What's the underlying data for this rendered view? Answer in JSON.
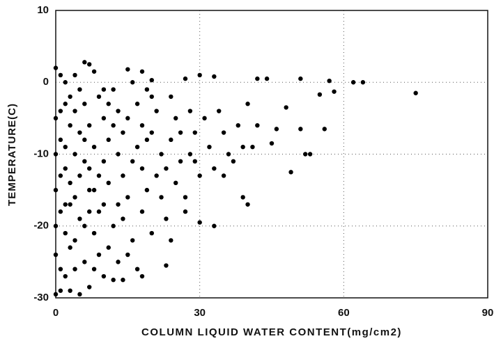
{
  "chart_data": {
    "type": "scatter",
    "xlabel": "COLUMN LIQUID WATER CONTENT(mg/cm2)",
    "ylabel": "TEMPERATURE(C)",
    "color": "#000000",
    "grid": true,
    "xlim": [
      0,
      90
    ],
    "xticks": [
      0,
      30,
      60,
      90
    ],
    "ylim": [
      -30,
      10
    ],
    "yticks": [
      -30,
      -20,
      -10,
      0,
      10
    ],
    "x": [
      75,
      64,
      62,
      58,
      57,
      55,
      56,
      51,
      51,
      53,
      52,
      49,
      48,
      46,
      45,
      44,
      42,
      42,
      41,
      40,
      39,
      37,
      35,
      33,
      30,
      27,
      23,
      24,
      18,
      17,
      14,
      12,
      10,
      7,
      5,
      3,
      1,
      0,
      6,
      7,
      15,
      18,
      20,
      27,
      30,
      33,
      0,
      1,
      2,
      3,
      0,
      1,
      2,
      0,
      1,
      2,
      0,
      1,
      3,
      2,
      4,
      5,
      4,
      5,
      4,
      5,
      4,
      6,
      5,
      6,
      7,
      8,
      7,
      8,
      7,
      8,
      9,
      8,
      9,
      10,
      11,
      10,
      11,
      10,
      12,
      11,
      13,
      12,
      13,
      14,
      13,
      14,
      15,
      14,
      16,
      15,
      16,
      17,
      18,
      17,
      18,
      19,
      18,
      20,
      19,
      21,
      20,
      22,
      21,
      22,
      23,
      24,
      25,
      24,
      26,
      25,
      27,
      28,
      29,
      28,
      30,
      31,
      32,
      33,
      34,
      35,
      36,
      38,
      39,
      40,
      3,
      2,
      3,
      1,
      6,
      9,
      12,
      16,
      19,
      23,
      26,
      29,
      3,
      6,
      9,
      11,
      15,
      20,
      4,
      8,
      2,
      1,
      0,
      0,
      2,
      4,
      6,
      7,
      10,
      13
    ],
    "values": [
      -1.5,
      0,
      0,
      -1.3,
      0.2,
      -1.7,
      -6.5,
      0.5,
      -6.5,
      -10,
      -10,
      -12.5,
      -3.5,
      -6.5,
      -8.5,
      0.5,
      0.5,
      -6,
      -9,
      -17,
      -16,
      -11,
      -13,
      -20,
      -19.5,
      -18,
      -25.5,
      -22,
      -27,
      -26,
      -27.5,
      -27.5,
      -27,
      -28.5,
      -29.5,
      -29,
      -29,
      -29.5,
      2.8,
      2.5,
      1.8,
      1.5,
      0.3,
      0.5,
      1,
      0.8,
      2,
      1,
      0,
      -2,
      -5,
      -8,
      -12,
      -15,
      -18,
      -21,
      -24,
      -26,
      -23,
      -27,
      -4,
      -7,
      -10,
      -13,
      -16,
      -19,
      -22,
      -25,
      -1,
      -3,
      -6,
      -9,
      -12,
      -15,
      -18,
      -21,
      -24,
      -26,
      -2,
      -5,
      -8,
      -11,
      -14,
      -17,
      -20,
      -23,
      -25,
      -1,
      -4,
      -7,
      -10,
      -13,
      -16,
      -19,
      -22,
      -24,
      0,
      -3,
      -6,
      -9,
      -12,
      -15,
      -18,
      -21,
      -1,
      -4,
      -7,
      -10,
      -13,
      -16,
      -19,
      -2,
      -5,
      -8,
      -11,
      -14,
      -16,
      -4,
      -7,
      -10,
      -13,
      -5,
      -9,
      -12,
      -4,
      -7,
      -10,
      -6,
      -9,
      -3,
      -6,
      -9,
      -14,
      -4,
      -11,
      -13,
      -6,
      -11,
      -8,
      -12,
      -7,
      -11,
      -17,
      -20,
      -18,
      -3,
      -5,
      -2,
      1,
      1.5,
      -3,
      -13,
      -10,
      -20,
      -17,
      -26,
      -8,
      -15,
      -1,
      -17
    ]
  }
}
